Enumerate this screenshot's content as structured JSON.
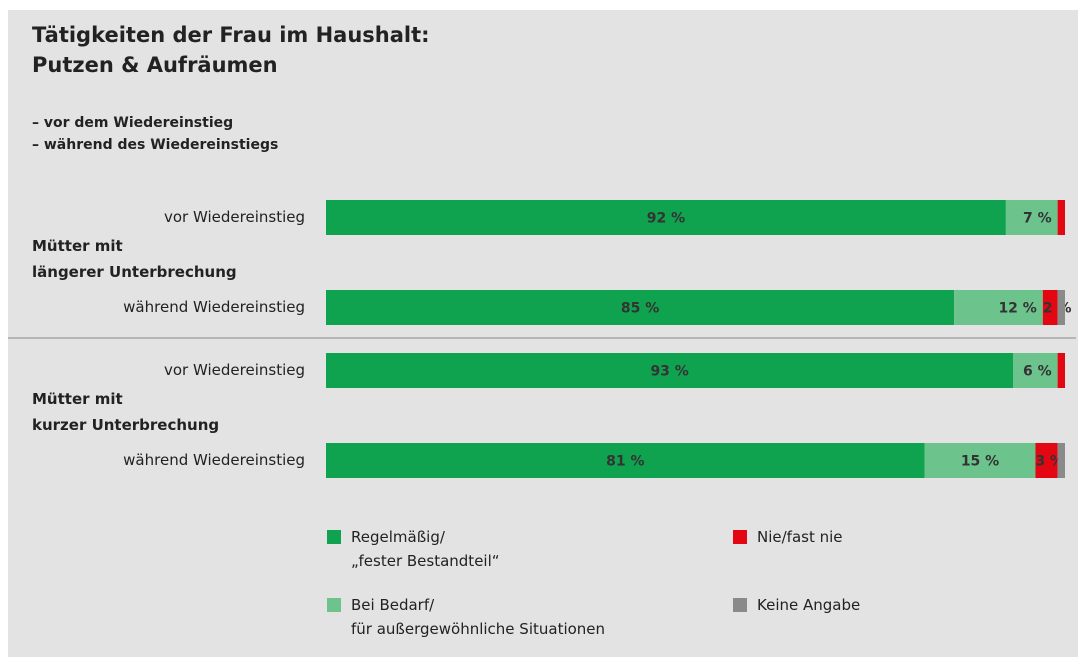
{
  "chart_data": {
    "type": "stacked-bar-horizontal",
    "title": "Tätigkeiten der Frau im Haushalt:\nPutzen & Aufräumen",
    "subtitle": "– vor dem Wiedereinstieg\n– während des Wiedereinstiegs",
    "categories": [
      "vor Wiedereinstieg",
      "während Wiedereinstieg",
      "vor Wiedereinstieg",
      "während Wiedereinstieg"
    ],
    "groups": [
      {
        "label": "Mütter mit\nlängerer Unterbrechung"
      },
      {
        "label": "Mütter mit\nkurzer Unterbrechung"
      }
    ],
    "xlim": [
      0,
      100
    ],
    "series": [
      {
        "name": "Regelmäßig/\n„fester Bestandteil“",
        "color": "#0fa24f",
        "values": [
          92,
          85,
          93,
          81
        ],
        "value_labels": [
          "92 %",
          "85 %",
          "93 %",
          "81 %"
        ]
      },
      {
        "name": "Bei Bedarf/\nfür außergewöhnliche Situationen",
        "color": "#6cc38c",
        "values": [
          7,
          12,
          6,
          15
        ],
        "value_labels": [
          "7 %",
          "12 %",
          "6 %",
          "15 %"
        ]
      },
      {
        "name": "Nie/fast nie",
        "color": "#e30613",
        "values": [
          1,
          2,
          1,
          3
        ],
        "value_labels": [
          null,
          "2 %",
          null,
          "3 %"
        ]
      },
      {
        "name": "Keine Angabe",
        "color": "#8a8a8a",
        "values": [
          0,
          1,
          0,
          1
        ],
        "value_labels": [
          null,
          null,
          null,
          null
        ]
      }
    ]
  }
}
